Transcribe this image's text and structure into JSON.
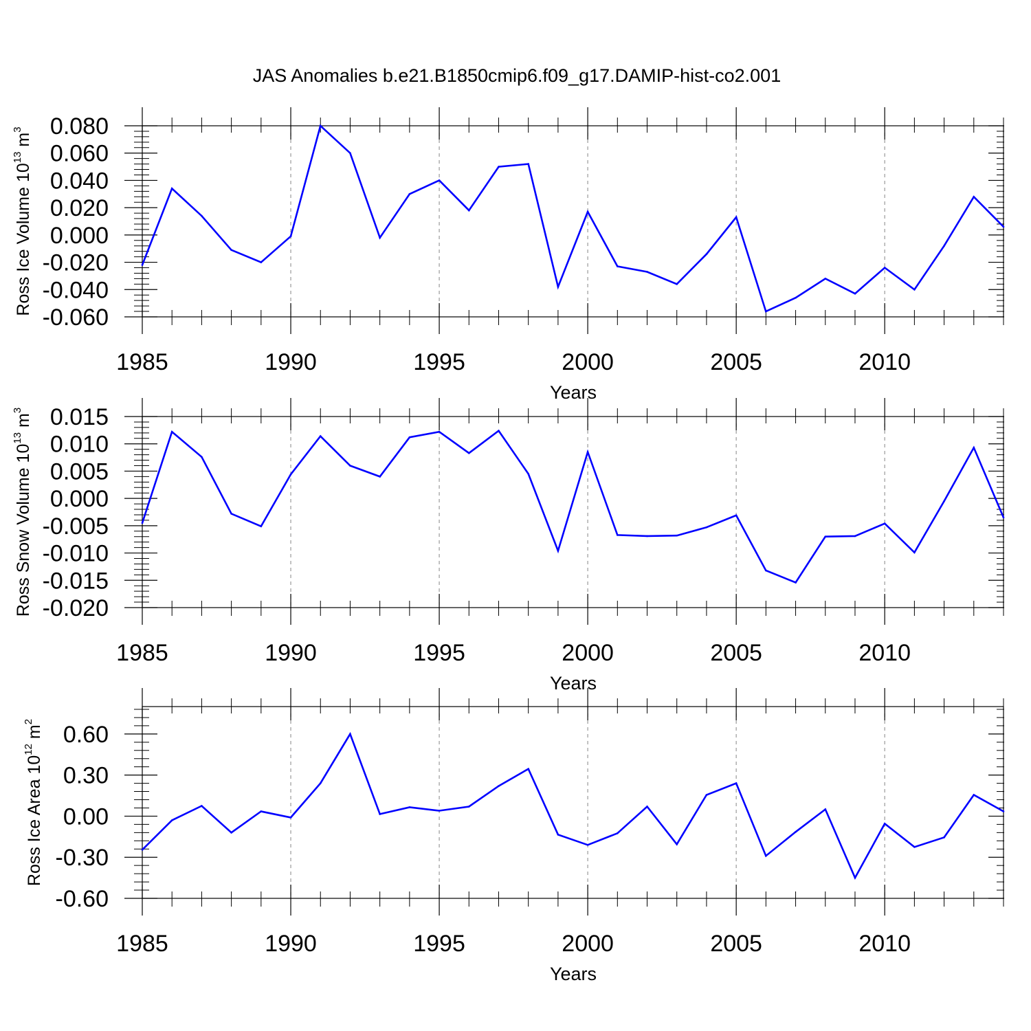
{
  "figure": {
    "title": "JAS Anomalies b.e21.B1850cmip6.f09_g17.DAMIP-hist-co2.001"
  },
  "chart_data": [
    {
      "type": "line",
      "ylabel": "Ross Ice Volume 10",
      "ylabel_exp": "13",
      "ylabel_unit": " m",
      "ylabel_unit_exp": "3",
      "xlabel": "Years",
      "xlim": [
        1985,
        2014
      ],
      "ylim": [
        -0.06,
        0.08
      ],
      "xticks": [
        1985,
        1990,
        1995,
        2000,
        2005,
        2010
      ],
      "xtick_labels": [
        "1985",
        "1990",
        "1995",
        "2000",
        "2005",
        "2010"
      ],
      "yticks": [
        -0.06,
        -0.04,
        -0.02,
        0.0,
        0.02,
        0.04,
        0.06,
        0.08
      ],
      "ytick_labels": [
        "-0.060",
        "-0.040",
        "-0.020",
        "0.000",
        "0.020",
        "0.040",
        "0.060",
        "0.080"
      ],
      "gridlines_x": [
        1990,
        1995,
        2000,
        2005,
        2010
      ],
      "line_color": "#0000ff",
      "x": [
        1985,
        1986,
        1987,
        1988,
        1989,
        1990,
        1991,
        1992,
        1993,
        1994,
        1995,
        1996,
        1997,
        1998,
        1999,
        2000,
        2001,
        2002,
        2003,
        2004,
        2005,
        2006,
        2007,
        2008,
        2009,
        2010,
        2011,
        2012,
        2013,
        2014
      ],
      "y": [
        -0.022,
        0.034,
        0.014,
        -0.011,
        -0.02,
        -0.001,
        0.08,
        0.06,
        -0.002,
        0.03,
        0.04,
        0.018,
        0.05,
        0.052,
        -0.038,
        0.017,
        -0.023,
        -0.027,
        -0.036,
        -0.014,
        0.013,
        -0.056,
        -0.046,
        -0.032,
        -0.043,
        -0.024,
        -0.04,
        -0.008,
        0.028,
        0.006
      ]
    },
    {
      "type": "line",
      "ylabel": "Ross Snow Volume 10",
      "ylabel_exp": "13",
      "ylabel_unit": " m",
      "ylabel_unit_exp": "3",
      "xlabel": "Years",
      "xlim": [
        1985,
        2014
      ],
      "ylim": [
        -0.02,
        0.015
      ],
      "xticks": [
        1985,
        1990,
        1995,
        2000,
        2005,
        2010
      ],
      "xtick_labels": [
        "1985",
        "1990",
        "1995",
        "2000",
        "2005",
        "2010"
      ],
      "yticks": [
        -0.02,
        -0.015,
        -0.01,
        -0.005,
        0.0,
        0.005,
        0.01,
        0.015
      ],
      "ytick_labels": [
        "-0.020",
        "-0.015",
        "-0.010",
        "-0.005",
        "0.000",
        "0.005",
        "0.010",
        "0.015"
      ],
      "gridlines_x": [
        1990,
        1995,
        2000,
        2005,
        2010
      ],
      "line_color": "#0000ff",
      "x": [
        1985,
        1986,
        1987,
        1988,
        1989,
        1990,
        1991,
        1992,
        1993,
        1994,
        1995,
        1996,
        1997,
        1998,
        1999,
        2000,
        2001,
        2002,
        2003,
        2004,
        2005,
        2006,
        2007,
        2008,
        2009,
        2010,
        2011,
        2012,
        2013,
        2014
      ],
      "y": [
        -0.0045,
        0.0122,
        0.0076,
        -0.0028,
        -0.0051,
        0.0044,
        0.0114,
        0.006,
        0.004,
        0.0112,
        0.0122,
        0.0083,
        0.0124,
        0.0045,
        -0.0096,
        0.0085,
        -0.0067,
        -0.0069,
        -0.0068,
        -0.0053,
        -0.0031,
        -0.0132,
        -0.0154,
        -0.007,
        -0.0069,
        -0.0046,
        -0.0099,
        -0.0005,
        0.0093,
        -0.0035
      ]
    },
    {
      "type": "line",
      "ylabel": "Ross Ice Area 10",
      "ylabel_exp": "12",
      "ylabel_unit": " m",
      "ylabel_unit_exp": "2",
      "xlabel": "Years",
      "xlim": [
        1985,
        2014
      ],
      "ylim": [
        -0.6,
        0.8
      ],
      "xticks": [
        1985,
        1990,
        1995,
        2000,
        2005,
        2010
      ],
      "xtick_labels": [
        "1985",
        "1990",
        "1995",
        "2000",
        "2005",
        "2010"
      ],
      "yticks": [
        -0.6,
        -0.3,
        0.0,
        0.3,
        0.6
      ],
      "ytick_labels": [
        "-0.60",
        "-0.30",
        "0.00",
        "0.30",
        "0.60"
      ],
      "gridlines_x": [
        1990,
        1995,
        2000,
        2005,
        2010
      ],
      "line_color": "#0000ff",
      "x": [
        1985,
        1986,
        1987,
        1988,
        1989,
        1990,
        1991,
        1992,
        1993,
        1994,
        1995,
        1996,
        1997,
        1998,
        1999,
        2000,
        2001,
        2002,
        2003,
        2004,
        2005,
        2006,
        2007,
        2008,
        2009,
        2010,
        2011,
        2012,
        2013,
        2014
      ],
      "y": [
        -0.245,
        -0.03,
        0.075,
        -0.12,
        0.035,
        -0.01,
        0.24,
        0.6,
        0.015,
        0.065,
        0.04,
        0.07,
        0.22,
        0.345,
        -0.135,
        -0.21,
        -0.125,
        0.07,
        -0.205,
        0.155,
        0.24,
        -0.29,
        -0.115,
        0.05,
        -0.45,
        -0.055,
        -0.225,
        -0.155,
        0.155,
        0.035
      ]
    }
  ]
}
